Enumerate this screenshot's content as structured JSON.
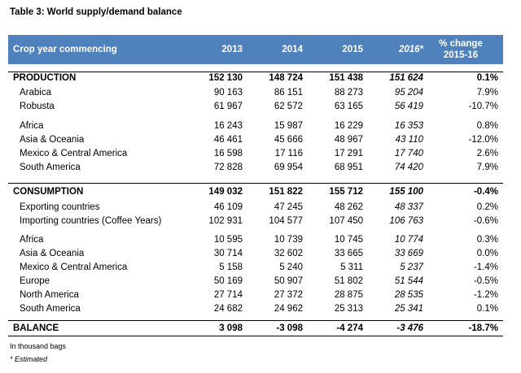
{
  "title": "Table 3: World supply/demand balance",
  "header": {
    "label": "Crop year commencing",
    "y2013": "2013",
    "y2014": "2014",
    "y2015": "2015",
    "y2016": "2016*",
    "change_line1": "% change",
    "change_line2": "2015-16"
  },
  "rows": [
    {
      "label": "PRODUCTION",
      "v2013": "152 130",
      "v2014": "148 724",
      "v2015": "151 438",
      "v2016": "151 624",
      "change": "0.1%"
    },
    {
      "label": "Arabica",
      "v2013": "90 163",
      "v2014": "86 151",
      "v2015": "88 273",
      "v2016": "95 204",
      "change": "7.9%"
    },
    {
      "label": "Robusta",
      "v2013": "61 967",
      "v2014": "62 572",
      "v2015": "63 165",
      "v2016": "56 419",
      "change": "-10.7%"
    },
    {
      "label": "Africa",
      "v2013": "16 243",
      "v2014": "15 987",
      "v2015": "16 229",
      "v2016": "16 353",
      "change": "0.8%"
    },
    {
      "label": "Asia & Oceania",
      "v2013": "46 461",
      "v2014": "45 666",
      "v2015": "48 967",
      "v2016": "43 110",
      "change": "-12.0%"
    },
    {
      "label": "Mexico & Central America",
      "v2013": "16 598",
      "v2014": "17 116",
      "v2015": "17 291",
      "v2016": "17 740",
      "change": "2.6%"
    },
    {
      "label": "South America",
      "v2013": "72 828",
      "v2014": "69 954",
      "v2015": "68 951",
      "v2016": "74 420",
      "change": "7.9%"
    },
    {
      "label": "CONSUMPTION",
      "v2013": "149 032",
      "v2014": "151 822",
      "v2015": "155 712",
      "v2016": "155 100",
      "change": "-0.4%"
    },
    {
      "label": "Exporting countries",
      "v2013": "46 109",
      "v2014": "47 245",
      "v2015": "48 262",
      "v2016": "48 337",
      "change": "0.2%"
    },
    {
      "label": "Importing countries (Coffee Years)",
      "v2013": "102 931",
      "v2014": "104 577",
      "v2015": "107 450",
      "v2016": "106 763",
      "change": "-0.6%"
    },
    {
      "label": "Africa",
      "v2013": "10 595",
      "v2014": "10 739",
      "v2015": "10 745",
      "v2016": "10 774",
      "change": "0.3%"
    },
    {
      "label": "Asia & Oceania",
      "v2013": "30 714",
      "v2014": "32 602",
      "v2015": "33 665",
      "v2016": "33 669",
      "change": "0.0%"
    },
    {
      "label": "Mexico & Central America",
      "v2013": "5 158",
      "v2014": "5 240",
      "v2015": "5 311",
      "v2016": "5 237",
      "change": "-1.4%"
    },
    {
      "label": "Europe",
      "v2013": "50 169",
      "v2014": "50 907",
      "v2015": "51 802",
      "v2016": "51 544",
      "change": "-0.5%"
    },
    {
      "label": "North America",
      "v2013": "27 714",
      "v2014": "27 372",
      "v2015": "28 875",
      "v2016": "28 535",
      "change": "-1.2%"
    },
    {
      "label": "South America",
      "v2013": "24 682",
      "v2014": "24 962",
      "v2015": "25 313",
      "v2016": "25 341",
      "change": "0.1%"
    },
    {
      "label": "BALANCE",
      "v2013": "3 098",
      "v2014": "-3 098",
      "v2015": "-4 274",
      "v2016": "-3 476",
      "change": "-18.7%"
    }
  ],
  "notes": {
    "units": "In thousand bags",
    "estimated": "* Estimated"
  }
}
